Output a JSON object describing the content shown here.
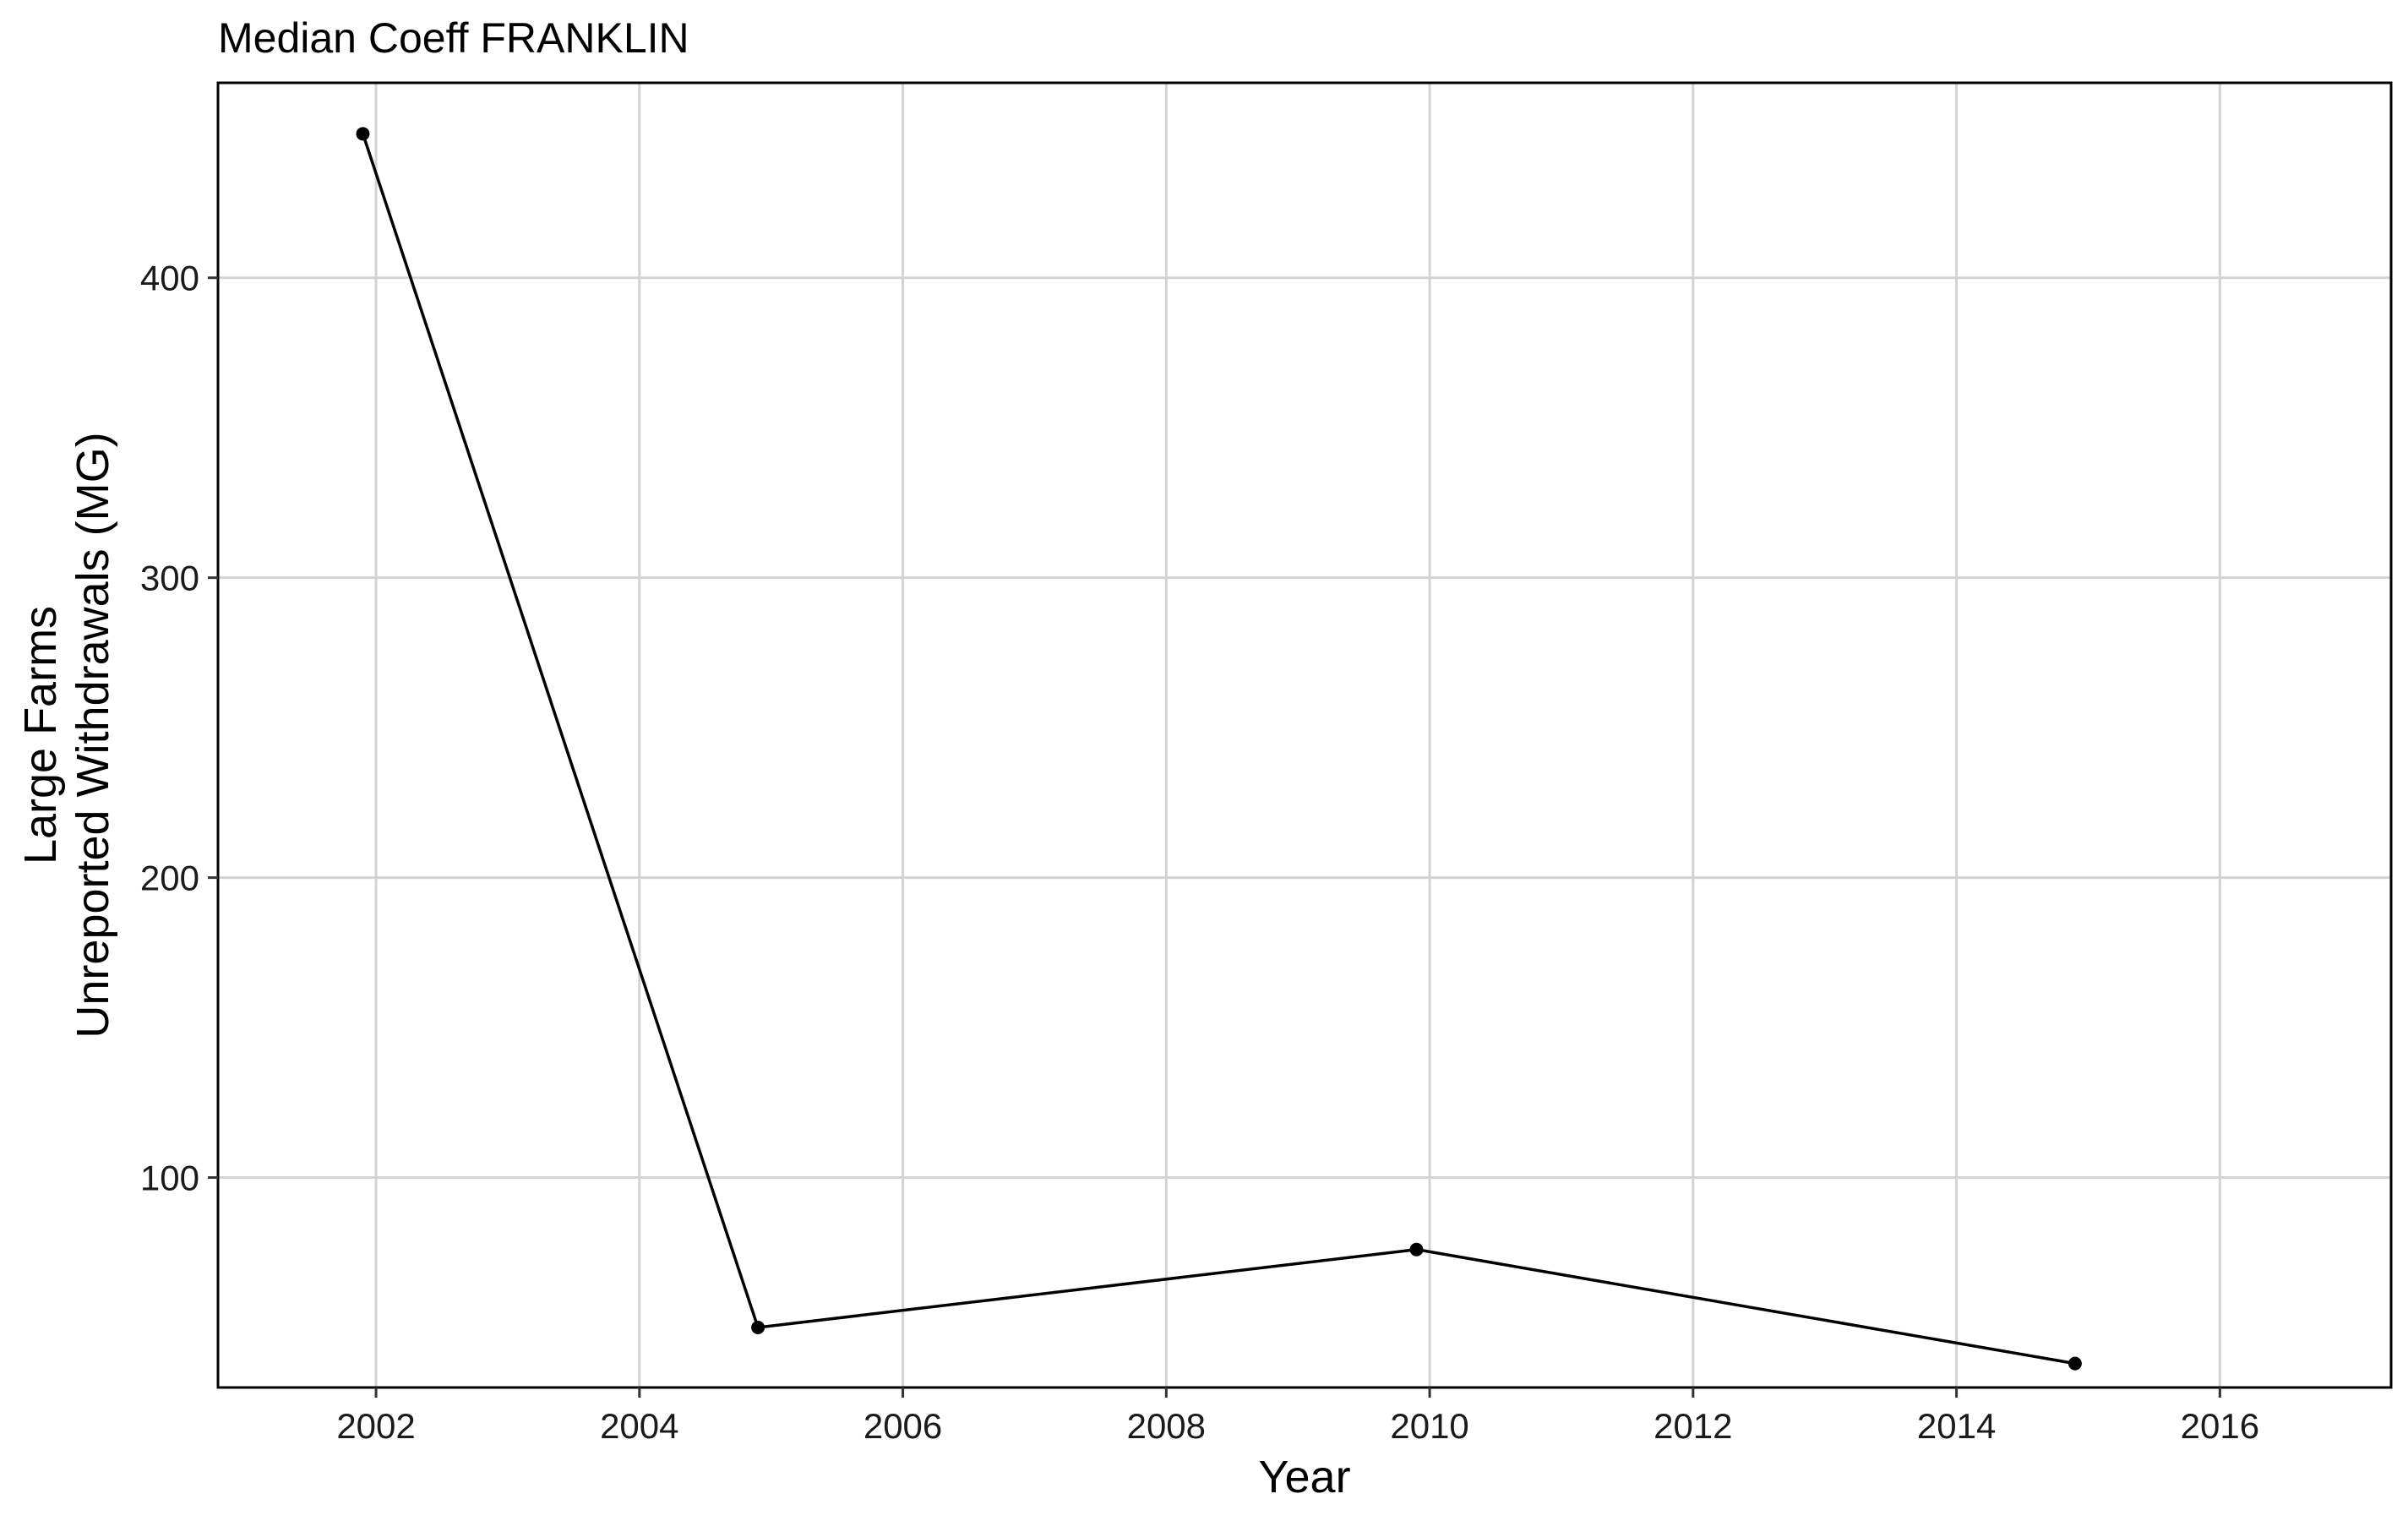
{
  "chart_data": {
    "type": "line",
    "title": "Median Coeff FRANKLIN",
    "xlabel": "Year",
    "ylabel_lines": [
      "Large Farms",
      "Unreported Withdrawals (MG)"
    ],
    "x": [
      2001.9,
      2004.9,
      2009.9,
      2014.9
    ],
    "y": [
      448,
      50,
      76,
      38
    ],
    "xlim": [
      2000.8,
      2017.3
    ],
    "ylim": [
      30,
      465
    ],
    "xticks": [
      2002,
      2004,
      2006,
      2008,
      2010,
      2012,
      2014,
      2016
    ],
    "yticks": [
      100,
      200,
      300,
      400
    ],
    "grid": true,
    "legend": "none",
    "colors": {
      "line": "#000000",
      "grid": "#d3d3d3",
      "panel_border": "#000000"
    }
  }
}
